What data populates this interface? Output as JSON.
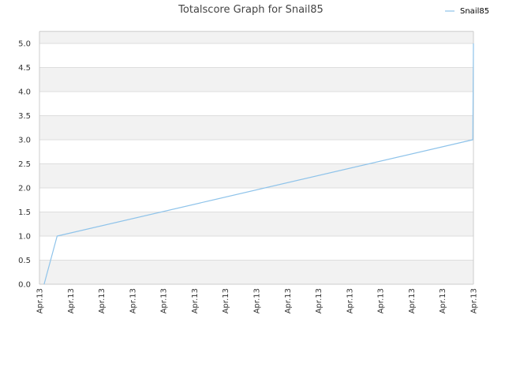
{
  "chart_data": {
    "type": "line",
    "title": "Totalscore Graph for Snail85",
    "xlabel": "",
    "ylabel": "",
    "x_tick_labels": [
      "Apr.13",
      "Apr.13",
      "Apr.13",
      "Apr.13",
      "Apr.13",
      "Apr.13",
      "Apr.13",
      "Apr.13",
      "Apr.13",
      "Apr.13",
      "Apr.13",
      "Apr.13",
      "Apr.13",
      "Apr.13",
      "Apr.13"
    ],
    "y_tick_labels": [
      "0.0",
      "0.5",
      "1.0",
      "1.5",
      "2.0",
      "2.5",
      "3.0",
      "3.5",
      "4.0",
      "4.5",
      "5.0"
    ],
    "ylim": [
      0,
      5.25
    ],
    "y_ticks": [
      0,
      0.5,
      1.0,
      1.5,
      2.0,
      2.5,
      3.0,
      3.5,
      4.0,
      4.5,
      5.0
    ],
    "grid": true,
    "legend_position": "top-right",
    "series": [
      {
        "name": "Snail85",
        "color": "#8ec3ea",
        "x_index": [
          0.15,
          0.57,
          13.98,
          14.0
        ],
        "values": [
          0,
          1,
          3,
          5
        ]
      }
    ]
  },
  "colors": {
    "band_shaded": "#f2f2f2",
    "band_plain": "#ffffff",
    "grid": "#dddddd",
    "axis": "#cccccc"
  }
}
